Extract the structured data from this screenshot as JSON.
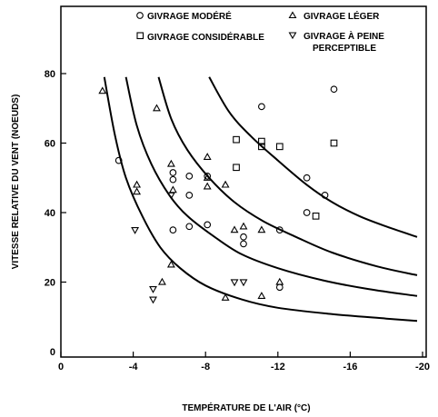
{
  "chart_data": {
    "type": "scatter",
    "title": "",
    "xlabel": "TEMPÉRATURE DE L'AIR (°C)",
    "ylabel": "VITESSE RELATIVE DU VENT (NOEUDS)",
    "xlim": [
      0,
      -20
    ],
    "ylim": [
      0,
      90
    ],
    "x_ticks": [
      0,
      -4,
      -8,
      -12,
      -16,
      -20
    ],
    "x_tick_labels": [
      "0",
      "-4",
      "-8",
      "-12",
      "-16",
      "-20"
    ],
    "y_ticks": [
      0,
      20,
      40,
      60,
      80
    ],
    "y_tick_labels": [
      "0",
      "20",
      "40",
      "60",
      "80"
    ],
    "grid": false,
    "legend_position": "top",
    "series": [
      {
        "name": "GIVRAGE MODÉRÉ",
        "marker": "circle",
        "points": [
          [
            -3.2,
            55
          ],
          [
            -6.2,
            51.5
          ],
          [
            -6.2,
            49.5
          ],
          [
            -6.2,
            35
          ],
          [
            -7.1,
            50.5
          ],
          [
            -7.1,
            45
          ],
          [
            -7.1,
            36
          ],
          [
            -8.1,
            50.5
          ],
          [
            -8.1,
            36.5
          ],
          [
            -10.1,
            33
          ],
          [
            -10.1,
            31
          ],
          [
            -11.1,
            70.5
          ],
          [
            -12.1,
            35
          ],
          [
            -12.1,
            18.5
          ],
          [
            -13.6,
            50
          ],
          [
            -13.6,
            40
          ],
          [
            -14.6,
            45
          ],
          [
            -15.1,
            75.5
          ]
        ]
      },
      {
        "name": "GIVRAGE LÉGER",
        "marker": "triangle-up",
        "points": [
          [
            -2.3,
            75
          ],
          [
            -4.2,
            48
          ],
          [
            -4.2,
            46
          ],
          [
            -5.3,
            70
          ],
          [
            -5.6,
            20
          ],
          [
            -6.1,
            54
          ],
          [
            -6.1,
            25
          ],
          [
            -6.2,
            46.5
          ],
          [
            -8.1,
            56
          ],
          [
            -8.1,
            50
          ],
          [
            -8.1,
            47.5
          ],
          [
            -9.1,
            48
          ],
          [
            -9.1,
            15.5
          ],
          [
            -9.6,
            35
          ],
          [
            -10.1,
            36
          ],
          [
            -11.1,
            35
          ],
          [
            -11.1,
            16
          ],
          [
            -12.1,
            20
          ]
        ]
      },
      {
        "name": "GIVRAGE CONSIDÉRABLE",
        "marker": "square",
        "points": [
          [
            -9.7,
            61
          ],
          [
            -9.7,
            53
          ],
          [
            -11.1,
            60.5
          ],
          [
            -11.1,
            59
          ],
          [
            -12.1,
            59
          ],
          [
            -14.1,
            39
          ],
          [
            -15.1,
            60
          ]
        ]
      },
      {
        "name": "GIVRAGE À PEINE PERCEPTIBLE",
        "marker": "triangle-down",
        "points": [
          [
            -4.1,
            35
          ],
          [
            -5.1,
            18
          ],
          [
            -5.1,
            15
          ],
          [
            -6.1,
            45
          ],
          [
            -9.6,
            20
          ],
          [
            -10.1,
            20
          ]
        ]
      }
    ],
    "curves": [
      {
        "points": [
          [
            -2.4,
            79
          ],
          [
            -3.0,
            62
          ],
          [
            -3.6,
            50
          ],
          [
            -4.5,
            39
          ],
          [
            -5.5,
            30
          ],
          [
            -6.6,
            24
          ],
          [
            -8.0,
            19
          ],
          [
            -10.0,
            15
          ],
          [
            -12.0,
            12.6
          ],
          [
            -15.0,
            10.8
          ],
          [
            -18.0,
            9.5
          ],
          [
            -19.7,
            8.8
          ]
        ]
      },
      {
        "points": [
          [
            -3.6,
            79
          ],
          [
            -4.2,
            65
          ],
          [
            -5.0,
            54
          ],
          [
            -6.0,
            45
          ],
          [
            -7.0,
            39
          ],
          [
            -8.5,
            33
          ],
          [
            -10.0,
            28
          ],
          [
            -12.0,
            24
          ],
          [
            -14.5,
            20.5
          ],
          [
            -17.0,
            18
          ],
          [
            -19.7,
            16
          ]
        ]
      },
      {
        "points": [
          [
            -5.4,
            79
          ],
          [
            -6.1,
            67
          ],
          [
            -7.0,
            58
          ],
          [
            -8.2,
            50
          ],
          [
            -9.6,
            43
          ],
          [
            -11.2,
            37.5
          ],
          [
            -13.0,
            33
          ],
          [
            -15.0,
            28.5
          ],
          [
            -17.5,
            24.5
          ],
          [
            -19.7,
            22
          ]
        ]
      },
      {
        "points": [
          [
            -8.2,
            79
          ],
          [
            -9.3,
            69
          ],
          [
            -10.5,
            62
          ],
          [
            -12.0,
            55
          ],
          [
            -13.6,
            48
          ],
          [
            -15.0,
            43
          ],
          [
            -16.5,
            39
          ],
          [
            -18.0,
            36
          ],
          [
            -19.7,
            33
          ]
        ]
      }
    ]
  },
  "legend": [
    {
      "label": "GIVRAGE MODÉRÉ",
      "marker": "circle"
    },
    {
      "label": "GIVRAGE LÉGER",
      "marker": "triangle-up"
    },
    {
      "label": "GIVRAGE CONSIDÉRABLE",
      "marker": "square"
    },
    {
      "label": "GIVRAGE À PEINE",
      "label2": "PERCEPTIBLE",
      "marker": "triangle-down"
    }
  ]
}
